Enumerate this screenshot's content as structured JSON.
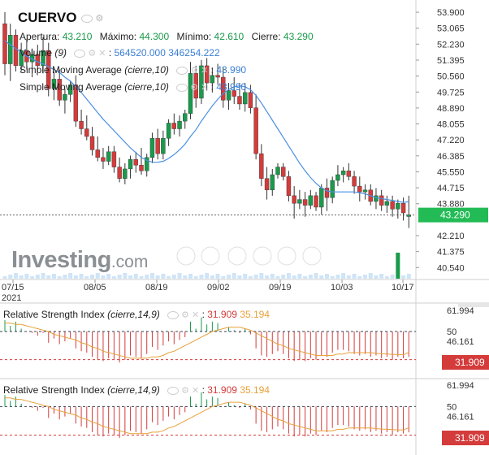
{
  "header": {
    "symbol": "CUERVO",
    "open_label": "Apertura:",
    "open": "43.210",
    "high_label": "Máximo:",
    "high": "44.300",
    "low_label": "Mínimo:",
    "low": "42.610",
    "close_label": "Cierre:",
    "close": "43.290"
  },
  "indicators": {
    "volume_name": "Volume",
    "volume_param": "(9)",
    "volume_value": "564520.000",
    "volume_avg": "346254.222",
    "sma_name": "Simple Moving Average",
    "sma_param": "(cierre,10)",
    "sma1_value": "43.990",
    "sma2_value": "43.990"
  },
  "watermark": {
    "brand": "Investing",
    "suffix": ".com"
  },
  "rsi_panels": [
    {
      "name": "Relative Strength Index",
      "params": "(cierre,14,9)",
      "value": "31.909",
      "signal": "35.194",
      "axis_top": "61.994",
      "axis_mid": "50",
      "axis_low": "46.161",
      "last_tag": "31.909"
    },
    {
      "name": "Relative Strength Index",
      "params": "(cierre,14,9)",
      "value": "31.909",
      "signal": "35.194",
      "axis_top": "61.994",
      "axis_mid": "50",
      "axis_low": "46.161",
      "last_tag": "31.909"
    }
  ],
  "colors": {
    "up": "#1a9a4b",
    "down": "#d43b3b",
    "sma": "#4a90e2",
    "rsi_signal": "#e8a13a",
    "last_price": "#22bb55"
  },
  "chart_data": {
    "type": "candlestick",
    "x_tick_labels": [
      "07/15",
      "08/05",
      "08/19",
      "09/02",
      "09/19",
      "10/03",
      "10/17"
    ],
    "x_year_label": "2021",
    "y_tick_labels": [
      "53.900",
      "53.065",
      "52.230",
      "51.395",
      "50.560",
      "49.725",
      "48.890",
      "48.055",
      "47.220",
      "46.385",
      "45.550",
      "44.715",
      "43.880",
      "42.210",
      "41.375",
      "40.540"
    ],
    "ylim": [
      40.0,
      54.2
    ],
    "last_price": 43.29,
    "candles": [
      {
        "o": 53.3,
        "h": 53.9,
        "l": 50.6,
        "c": 51.2
      },
      {
        "o": 51.2,
        "h": 53.3,
        "l": 50.3,
        "c": 52.7
      },
      {
        "o": 52.7,
        "h": 53.0,
        "l": 50.8,
        "c": 51.1
      },
      {
        "o": 51.1,
        "h": 52.3,
        "l": 50.8,
        "c": 51.9
      },
      {
        "o": 51.9,
        "h": 52.5,
        "l": 50.9,
        "c": 51.3
      },
      {
        "o": 51.3,
        "h": 52.0,
        "l": 50.5,
        "c": 51.7
      },
      {
        "o": 51.7,
        "h": 52.2,
        "l": 50.8,
        "c": 51.1
      },
      {
        "o": 51.1,
        "h": 52.6,
        "l": 50.7,
        "c": 51.9
      },
      {
        "o": 51.9,
        "h": 52.3,
        "l": 49.5,
        "c": 49.9
      },
      {
        "o": 49.9,
        "h": 50.8,
        "l": 49.3,
        "c": 50.4
      },
      {
        "o": 50.4,
        "h": 50.9,
        "l": 49.0,
        "c": 49.3
      },
      {
        "o": 49.3,
        "h": 49.9,
        "l": 48.6,
        "c": 49.6
      },
      {
        "o": 49.6,
        "h": 50.3,
        "l": 49.2,
        "c": 50.1
      },
      {
        "o": 50.1,
        "h": 50.6,
        "l": 47.9,
        "c": 48.2
      },
      {
        "o": 48.2,
        "h": 48.8,
        "l": 47.5,
        "c": 47.8
      },
      {
        "o": 47.8,
        "h": 48.5,
        "l": 47.2,
        "c": 47.4
      },
      {
        "o": 47.4,
        "h": 47.9,
        "l": 46.4,
        "c": 46.7
      },
      {
        "o": 46.7,
        "h": 47.4,
        "l": 46.1,
        "c": 46.3
      },
      {
        "o": 46.3,
        "h": 46.8,
        "l": 45.7,
        "c": 46.1
      },
      {
        "o": 46.1,
        "h": 46.9,
        "l": 45.9,
        "c": 46.6
      },
      {
        "o": 46.6,
        "h": 46.9,
        "l": 45.5,
        "c": 45.8
      },
      {
        "o": 45.8,
        "h": 46.3,
        "l": 45.0,
        "c": 45.2
      },
      {
        "o": 45.2,
        "h": 46.0,
        "l": 44.9,
        "c": 45.7
      },
      {
        "o": 45.7,
        "h": 46.4,
        "l": 45.2,
        "c": 46.2
      },
      {
        "o": 46.2,
        "h": 46.6,
        "l": 45.5,
        "c": 45.9
      },
      {
        "o": 45.9,
        "h": 46.8,
        "l": 45.4,
        "c": 45.6
      },
      {
        "o": 45.6,
        "h": 46.5,
        "l": 45.3,
        "c": 46.3
      },
      {
        "o": 46.3,
        "h": 47.6,
        "l": 46.0,
        "c": 47.3
      },
      {
        "o": 47.3,
        "h": 47.8,
        "l": 46.2,
        "c": 46.5
      },
      {
        "o": 46.5,
        "h": 47.7,
        "l": 46.2,
        "c": 47.3
      },
      {
        "o": 47.3,
        "h": 48.3,
        "l": 46.9,
        "c": 48.1
      },
      {
        "o": 48.1,
        "h": 48.6,
        "l": 47.5,
        "c": 47.8
      },
      {
        "o": 47.8,
        "h": 48.5,
        "l": 47.4,
        "c": 48.2
      },
      {
        "o": 48.2,
        "h": 48.8,
        "l": 47.8,
        "c": 48.6
      },
      {
        "o": 48.6,
        "h": 51.3,
        "l": 48.3,
        "c": 50.7
      },
      {
        "o": 50.7,
        "h": 51.1,
        "l": 48.9,
        "c": 49.4
      },
      {
        "o": 49.4,
        "h": 51.4,
        "l": 49.1,
        "c": 51.1
      },
      {
        "o": 51.1,
        "h": 51.5,
        "l": 49.8,
        "c": 50.2
      },
      {
        "o": 50.2,
        "h": 51.0,
        "l": 49.7,
        "c": 50.6
      },
      {
        "o": 50.6,
        "h": 51.2,
        "l": 50.1,
        "c": 50.5
      },
      {
        "o": 50.5,
        "h": 51.0,
        "l": 48.9,
        "c": 49.3
      },
      {
        "o": 49.3,
        "h": 50.2,
        "l": 48.8,
        "c": 49.8
      },
      {
        "o": 49.8,
        "h": 50.5,
        "l": 49.1,
        "c": 49.5
      },
      {
        "o": 49.5,
        "h": 50.2,
        "l": 48.8,
        "c": 49.1
      },
      {
        "o": 49.1,
        "h": 50.2,
        "l": 48.7,
        "c": 49.7
      },
      {
        "o": 49.7,
        "h": 50.1,
        "l": 48.6,
        "c": 48.9
      },
      {
        "o": 48.9,
        "h": 49.6,
        "l": 46.2,
        "c": 46.5
      },
      {
        "o": 46.5,
        "h": 47.0,
        "l": 44.8,
        "c": 45.2
      },
      {
        "o": 45.2,
        "h": 45.8,
        "l": 44.1,
        "c": 44.6
      },
      {
        "o": 44.6,
        "h": 45.7,
        "l": 44.3,
        "c": 45.4
      },
      {
        "o": 45.4,
        "h": 46.0,
        "l": 45.2,
        "c": 45.8
      },
      {
        "o": 45.8,
        "h": 46.0,
        "l": 45.1,
        "c": 45.3
      },
      {
        "o": 45.3,
        "h": 45.6,
        "l": 44.0,
        "c": 44.3
      },
      {
        "o": 44.3,
        "h": 44.8,
        "l": 43.1,
        "c": 43.9
      },
      {
        "o": 43.9,
        "h": 44.6,
        "l": 43.6,
        "c": 44.1
      },
      {
        "o": 44.1,
        "h": 44.5,
        "l": 43.2,
        "c": 43.8
      },
      {
        "o": 43.8,
        "h": 44.6,
        "l": 43.6,
        "c": 44.3
      },
      {
        "o": 44.3,
        "h": 44.5,
        "l": 43.5,
        "c": 43.7
      },
      {
        "o": 43.7,
        "h": 44.9,
        "l": 43.3,
        "c": 44.7
      },
      {
        "o": 44.7,
        "h": 45.2,
        "l": 43.5,
        "c": 44.2
      },
      {
        "o": 44.2,
        "h": 45.3,
        "l": 43.9,
        "c": 45.1
      },
      {
        "o": 45.1,
        "h": 45.9,
        "l": 44.8,
        "c": 45.4
      },
      {
        "o": 45.4,
        "h": 45.8,
        "l": 45.0,
        "c": 45.6
      },
      {
        "o": 45.6,
        "h": 46.0,
        "l": 45.1,
        "c": 45.3
      },
      {
        "o": 45.3,
        "h": 45.6,
        "l": 44.4,
        "c": 44.8
      },
      {
        "o": 44.8,
        "h": 45.3,
        "l": 44.0,
        "c": 44.5
      },
      {
        "o": 44.5,
        "h": 44.9,
        "l": 44.1,
        "c": 44.6
      },
      {
        "o": 44.6,
        "h": 44.9,
        "l": 43.8,
        "c": 44.0
      },
      {
        "o": 44.0,
        "h": 44.7,
        "l": 43.6,
        "c": 44.3
      },
      {
        "o": 44.3,
        "h": 44.6,
        "l": 43.5,
        "c": 43.8
      },
      {
        "o": 43.8,
        "h": 44.3,
        "l": 43.4,
        "c": 44.0
      },
      {
        "o": 44.0,
        "h": 44.3,
        "l": 43.2,
        "c": 43.6
      },
      {
        "o": 43.6,
        "h": 44.1,
        "l": 43.1,
        "c": 43.9
      },
      {
        "o": 43.9,
        "h": 44.2,
        "l": 43.0,
        "c": 43.4
      },
      {
        "o": 43.21,
        "h": 44.3,
        "l": 42.61,
        "c": 43.29
      }
    ],
    "sma": [
      52.4,
      52.2,
      52.0,
      51.8,
      51.6,
      51.45,
      51.3,
      51.2,
      51.05,
      50.9,
      50.75,
      50.5,
      50.3,
      50.0,
      49.7,
      49.35,
      49.0,
      48.65,
      48.3,
      48.0,
      47.7,
      47.4,
      47.1,
      46.8,
      46.55,
      46.3,
      46.15,
      46.05,
      46.05,
      46.1,
      46.25,
      46.45,
      46.7,
      47.0,
      47.4,
      47.75,
      48.2,
      48.6,
      49.0,
      49.35,
      49.65,
      49.85,
      50.0,
      50.05,
      50.0,
      49.85,
      49.55,
      49.15,
      48.7,
      48.25,
      47.8,
      47.35,
      46.9,
      46.45,
      46.0,
      45.6,
      45.25,
      44.95,
      44.7,
      44.55,
      44.5,
      44.5,
      44.5,
      44.5,
      44.5,
      44.45,
      44.4,
      44.3,
      44.2,
      44.15,
      44.1,
      44.05,
      44.0,
      43.95,
      43.99
    ],
    "volume_max_index": 72,
    "rsi": [
      58,
      54,
      57,
      52,
      50,
      49,
      47,
      49,
      42,
      45,
      41,
      43,
      45,
      38,
      36,
      35,
      32,
      30,
      29,
      31,
      30,
      28,
      30,
      33,
      32,
      31,
      34,
      39,
      37,
      40,
      43,
      41,
      44,
      46,
      57,
      52,
      60,
      55,
      57,
      56,
      50,
      53,
      51,
      49,
      52,
      48,
      38,
      33,
      32,
      34,
      36,
      34,
      31,
      29,
      30,
      29,
      31,
      30,
      33,
      32,
      35,
      37,
      37,
      36,
      34,
      33,
      34,
      32,
      33,
      31,
      32,
      30,
      32,
      31,
      31.9
    ],
    "rsi_signal": [
      56,
      56,
      55,
      55,
      54,
      53,
      52,
      51,
      50,
      48,
      47,
      46,
      45,
      44,
      42,
      41,
      39,
      38,
      36,
      35,
      34,
      33,
      32,
      31,
      31,
      31,
      31,
      32,
      32,
      33,
      35,
      36,
      38,
      40,
      42,
      44,
      46,
      48,
      50,
      51,
      52,
      53,
      53,
      53,
      52,
      51,
      49,
      47,
      45,
      43,
      41,
      40,
      38,
      37,
      36,
      35,
      34,
      33,
      33,
      33,
      33,
      34,
      34,
      35,
      35,
      35,
      35,
      35,
      34.5,
      34.2,
      34,
      33.8,
      33.6,
      33.5,
      35.194
    ],
    "rsi_levels": {
      "overbought": 70,
      "oversold": 30,
      "mid": 50
    }
  }
}
